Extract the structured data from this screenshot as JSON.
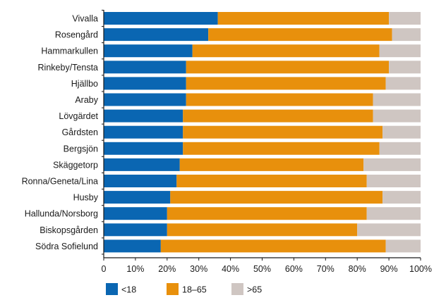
{
  "chart_data": {
    "type": "bar",
    "orientation": "horizontal",
    "stacked": true,
    "categories": [
      "Vivalla",
      "Rosengård",
      "Hammarkullen",
      "Rinkeby/Tensta",
      "Hjällbo",
      "Araby",
      "Lövgärdet",
      "Gårdsten",
      "Bergsjön",
      "Skäggetorp",
      "Ronna/Geneta/Lina",
      "Husby",
      "Hallunda/Norsborg",
      "Biskopsgården",
      "Södra Sofielund"
    ],
    "series": [
      {
        "name": "<18",
        "color": "#0a66b2",
        "values": [
          36,
          33,
          28,
          26,
          26,
          26,
          25,
          25,
          25,
          24,
          23,
          21,
          20,
          20,
          18
        ]
      },
      {
        "name": "18–65",
        "color": "#e8900c",
        "values": [
          54,
          58,
          59,
          64,
          63,
          59,
          60,
          63,
          62,
          58,
          60,
          67,
          63,
          60,
          71
        ]
      },
      {
        "name": ">65",
        "color": "#cfc6c2",
        "values": [
          10,
          9,
          13,
          10,
          11,
          15,
          15,
          12,
          13,
          18,
          17,
          12,
          17,
          20,
          11
        ]
      }
    ],
    "x_ticks": [
      "0",
      "10%",
      "20%",
      "30%",
      "40%",
      "50%",
      "60%",
      "70%",
      "80%",
      "90%",
      "100%"
    ],
    "xlim": [
      0,
      100
    ],
    "title": "",
    "xlabel": "",
    "ylabel": "",
    "grid": false,
    "legend_position": "bottom-left"
  }
}
